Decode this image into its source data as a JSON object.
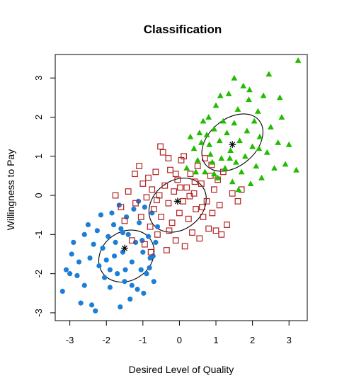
{
  "chart_data": {
    "type": "scatter",
    "title": "Classification",
    "xlabel": "Desired Level of Quality",
    "ylabel": "Willingness to Pay",
    "xlim": [
      -3.4,
      3.5
    ],
    "ylim": [
      -3.2,
      3.6
    ],
    "xticks": [
      -3,
      -2,
      -1,
      0,
      1,
      2,
      3
    ],
    "yticks": [
      -3,
      -2,
      -1,
      0,
      1,
      2,
      3
    ],
    "grid": false,
    "legend": "none",
    "series": [
      {
        "marker": "filled-circle",
        "color": "#1c7ed6",
        "center": [
          -1.5,
          -1.35
        ],
        "ellipse": {
          "cx": -1.45,
          "cy": -1.55,
          "rx": 0.8,
          "ry": 0.62,
          "angle_deg": 35
        },
        "points": [
          [
            -3.2,
            -2.45
          ],
          [
            -3.1,
            -1.9
          ],
          [
            -3.0,
            -2.0
          ],
          [
            -2.95,
            -1.5
          ],
          [
            -2.9,
            -1.2
          ],
          [
            -2.8,
            -2.05
          ],
          [
            -2.7,
            -2.75
          ],
          [
            -2.6,
            -2.3
          ],
          [
            -2.5,
            -0.75
          ],
          [
            -2.6,
            -1.0
          ],
          [
            -2.4,
            -2.8
          ],
          [
            -2.3,
            -2.95
          ],
          [
            -2.35,
            -1.25
          ],
          [
            -2.2,
            -1.8
          ],
          [
            -2.25,
            -0.9
          ],
          [
            -2.1,
            -1.35
          ],
          [
            -2.0,
            -1.65
          ],
          [
            -1.95,
            -1.05
          ],
          [
            -1.9,
            -2.35
          ],
          [
            -1.85,
            -0.45
          ],
          [
            -1.8,
            -0.75
          ],
          [
            -1.75,
            -1.2
          ],
          [
            -1.7,
            -2.0
          ],
          [
            -1.65,
            -0.25
          ],
          [
            -1.6,
            -0.85
          ],
          [
            -1.55,
            -1.45
          ],
          [
            -1.5,
            -2.2
          ],
          [
            -1.45,
            -0.55
          ],
          [
            -1.4,
            -1.0
          ],
          [
            -1.35,
            -2.65
          ],
          [
            -1.3,
            -1.7
          ],
          [
            -1.25,
            -0.35
          ],
          [
            -1.2,
            -1.2
          ],
          [
            -1.15,
            -2.4
          ],
          [
            -1.1,
            -0.7
          ],
          [
            -1.05,
            -1.9
          ],
          [
            -1.0,
            -1.45
          ],
          [
            -0.95,
            -0.3
          ],
          [
            -0.9,
            -2.0
          ],
          [
            -0.85,
            -1.05
          ],
          [
            -0.8,
            -1.6
          ],
          [
            -0.75,
            -0.45
          ],
          [
            -0.7,
            -2.2
          ],
          [
            -0.65,
            -1.2
          ],
          [
            -0.6,
            -0.8
          ],
          [
            -2.15,
            -0.5
          ],
          [
            -2.05,
            -2.1
          ],
          [
            -1.78,
            -1.55
          ],
          [
            -1.62,
            -2.85
          ],
          [
            -1.48,
            -1.9
          ],
          [
            -1.3,
            -2.3
          ],
          [
            -1.12,
            -0.15
          ],
          [
            -0.98,
            -2.5
          ],
          [
            -0.82,
            -1.85
          ],
          [
            -2.45,
            -1.6
          ],
          [
            -2.75,
            -1.7
          ],
          [
            -1.9,
            -1.9
          ],
          [
            -1.55,
            -0.95
          ],
          [
            -1.02,
            -1.15
          ],
          [
            -0.72,
            -1.55
          ]
        ]
      },
      {
        "marker": "open-square",
        "color": "#b22222",
        "center": [
          -0.05,
          -0.15
        ],
        "ellipse": {
          "cx": -0.05,
          "cy": -0.25,
          "rx": 0.85,
          "ry": 0.62,
          "angle_deg": 38
        },
        "points": [
          [
            -1.75,
            0.0
          ],
          [
            -1.6,
            -0.3
          ],
          [
            -1.5,
            -0.65
          ],
          [
            -1.4,
            0.1
          ],
          [
            -1.3,
            -1.15
          ],
          [
            -1.2,
            -0.2
          ],
          [
            -1.1,
            0.75
          ],
          [
            -1.05,
            -0.55
          ],
          [
            -1.0,
            0.3
          ],
          [
            -0.95,
            -1.25
          ],
          [
            -0.9,
            -0.05
          ],
          [
            -0.85,
            0.45
          ],
          [
            -0.8,
            -0.8
          ],
          [
            -0.75,
            0.15
          ],
          [
            -0.7,
            -0.35
          ],
          [
            -0.65,
            0.6
          ],
          [
            -0.6,
            -1.0
          ],
          [
            -0.55,
            0.0
          ],
          [
            -0.5,
            -0.55
          ],
          [
            -0.45,
            1.1
          ],
          [
            -0.4,
            0.25
          ],
          [
            -0.35,
            -1.4
          ],
          [
            -0.3,
            -0.2
          ],
          [
            -0.25,
            0.65
          ],
          [
            -0.2,
            -0.7
          ],
          [
            -0.15,
            0.1
          ],
          [
            -0.1,
            -1.15
          ],
          [
            -0.05,
            0.4
          ],
          [
            0.0,
            -0.45
          ],
          [
            0.05,
            0.9
          ],
          [
            0.1,
            -0.15
          ],
          [
            0.15,
            -1.3
          ],
          [
            0.2,
            0.2
          ],
          [
            0.25,
            -0.6
          ],
          [
            0.3,
            0.55
          ],
          [
            0.35,
            -0.95
          ],
          [
            0.4,
            0.05
          ],
          [
            0.45,
            -0.35
          ],
          [
            0.5,
            0.75
          ],
          [
            0.55,
            -1.1
          ],
          [
            0.6,
            0.3
          ],
          [
            0.65,
            -0.55
          ],
          [
            0.7,
            0.95
          ],
          [
            0.75,
            -0.15
          ],
          [
            0.8,
            -0.85
          ],
          [
            0.85,
            0.5
          ],
          [
            0.9,
            -0.45
          ],
          [
            0.95,
            0.15
          ],
          [
            1.0,
            -0.9
          ],
          [
            1.05,
            0.4
          ],
          [
            1.1,
            -0.25
          ],
          [
            1.2,
            0.6
          ],
          [
            1.3,
            -0.75
          ],
          [
            1.45,
            0.05
          ],
          [
            1.6,
            -0.15
          ],
          [
            1.7,
            0.15
          ],
          [
            -0.52,
            1.25
          ],
          [
            -0.3,
            0.95
          ],
          [
            0.12,
            1.0
          ],
          [
            -0.78,
            -1.45
          ],
          [
            -1.22,
            0.55
          ],
          [
            0.28,
            -0.02
          ],
          [
            -0.1,
            0.55
          ],
          [
            0.42,
            0.35
          ],
          [
            -0.62,
            -0.12
          ],
          [
            0.62,
            -0.3
          ],
          [
            1.15,
            -1.0
          ],
          [
            -0.28,
            -0.9
          ],
          [
            0.02,
            0.2
          ],
          [
            0.88,
            0.78
          ]
        ]
      },
      {
        "marker": "filled-triangle",
        "color": "#22bb00",
        "center": [
          1.45,
          1.3
        ],
        "ellipse": {
          "cx": 1.45,
          "cy": 1.35,
          "rx": 0.95,
          "ry": 0.6,
          "angle_deg": 40
        },
        "points": [
          [
            0.2,
            0.7
          ],
          [
            0.3,
            1.5
          ],
          [
            0.4,
            1.2
          ],
          [
            0.5,
            0.9
          ],
          [
            0.55,
            1.6
          ],
          [
            0.6,
            1.35
          ],
          [
            0.7,
            0.6
          ],
          [
            0.75,
            1.55
          ],
          [
            0.8,
            2.0
          ],
          [
            0.85,
            1.05
          ],
          [
            0.9,
            0.85
          ],
          [
            0.95,
            1.7
          ],
          [
            1.0,
            2.3
          ],
          [
            1.05,
            0.45
          ],
          [
            1.1,
            1.4
          ],
          [
            1.15,
            0.95
          ],
          [
            1.2,
            1.9
          ],
          [
            1.25,
            0.7
          ],
          [
            1.3,
            1.6
          ],
          [
            1.35,
            2.6
          ],
          [
            1.4,
            1.15
          ],
          [
            1.45,
            0.35
          ],
          [
            1.5,
            1.85
          ],
          [
            1.55,
            0.85
          ],
          [
            1.6,
            2.2
          ],
          [
            1.65,
            1.4
          ],
          [
            1.7,
            0.6
          ],
          [
            1.75,
            2.8
          ],
          [
            1.8,
            1.0
          ],
          [
            1.85,
            1.65
          ],
          [
            1.9,
            2.45
          ],
          [
            1.95,
            0.3
          ],
          [
            2.0,
            1.25
          ],
          [
            2.05,
            1.9
          ],
          [
            2.1,
            0.75
          ],
          [
            2.15,
            2.15
          ],
          [
            2.2,
            1.5
          ],
          [
            2.25,
            0.45
          ],
          [
            2.3,
            2.55
          ],
          [
            2.4,
            1.1
          ],
          [
            2.5,
            1.75
          ],
          [
            2.6,
            0.7
          ],
          [
            2.7,
            1.35
          ],
          [
            2.8,
            2.0
          ],
          [
            2.9,
            0.8
          ],
          [
            3.0,
            1.3
          ],
          [
            3.2,
            0.65
          ],
          [
            3.25,
            3.45
          ],
          [
            0.95,
            0.55
          ],
          [
            1.12,
            2.55
          ],
          [
            1.5,
            3.0
          ],
          [
            1.92,
            2.7
          ],
          [
            2.18,
            1.2
          ],
          [
            1.38,
            0.95
          ],
          [
            0.65,
            1.9
          ],
          [
            0.45,
            0.6
          ],
          [
            2.45,
            3.1
          ],
          [
            2.75,
            2.5
          ],
          [
            1.62,
            0.15
          ],
          [
            0.82,
            1.3
          ]
        ]
      }
    ]
  }
}
